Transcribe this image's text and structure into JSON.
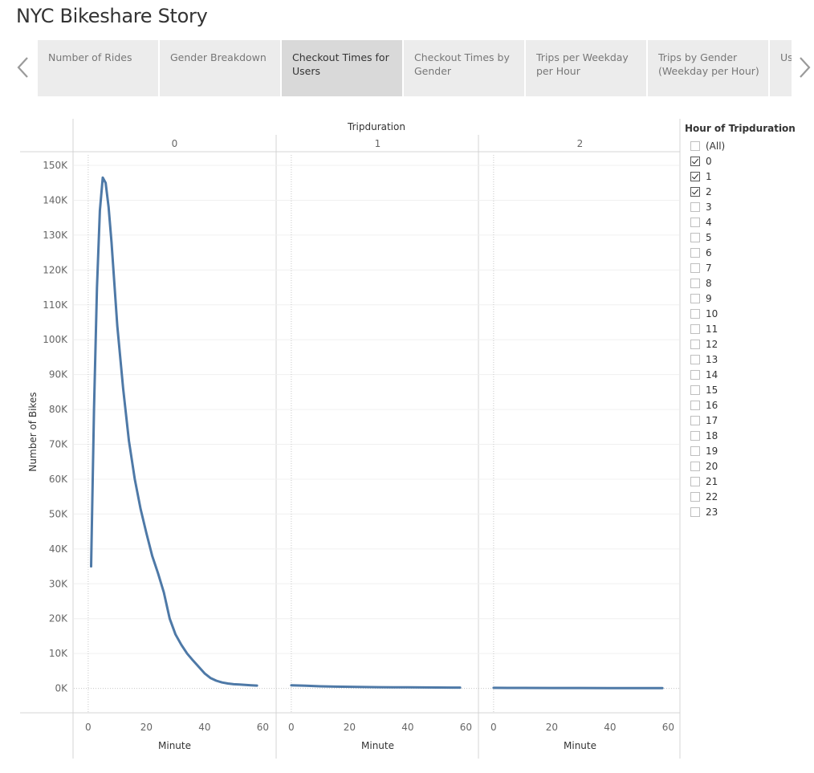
{
  "story": {
    "title": "NYC Bikeshare Story"
  },
  "tabs": [
    {
      "label": "Number of Rides",
      "active": false
    },
    {
      "label": "Gender Breakdown",
      "active": false
    },
    {
      "label": "Checkout Times for Users",
      "active": true
    },
    {
      "label": "Checkout Times by Gender",
      "active": false
    },
    {
      "label": "Trips per Weekday per Hour",
      "active": false
    },
    {
      "label": "Trips by Gender (Weekday per Hour)",
      "active": false
    },
    {
      "label": "Us by",
      "active": false
    }
  ],
  "icons": {
    "prev": "chevron-left-icon",
    "next": "chevron-right-icon",
    "checkbox": "checkbox-icon"
  },
  "colors": {
    "line": "#4e79a7",
    "active_tab": "#d9d9d9",
    "tab": "#ececec"
  },
  "filter": {
    "title": "Hour of Tripduration",
    "items": [
      {
        "label": "(All)",
        "checked": false
      },
      {
        "label": "0",
        "checked": true
      },
      {
        "label": "1",
        "checked": true
      },
      {
        "label": "2",
        "checked": true
      },
      {
        "label": "3",
        "checked": false
      },
      {
        "label": "4",
        "checked": false
      },
      {
        "label": "5",
        "checked": false
      },
      {
        "label": "6",
        "checked": false
      },
      {
        "label": "7",
        "checked": false
      },
      {
        "label": "8",
        "checked": false
      },
      {
        "label": "9",
        "checked": false
      },
      {
        "label": "10",
        "checked": false
      },
      {
        "label": "11",
        "checked": false
      },
      {
        "label": "12",
        "checked": false
      },
      {
        "label": "13",
        "checked": false
      },
      {
        "label": "14",
        "checked": false
      },
      {
        "label": "15",
        "checked": false
      },
      {
        "label": "16",
        "checked": false
      },
      {
        "label": "17",
        "checked": false
      },
      {
        "label": "18",
        "checked": false
      },
      {
        "label": "19",
        "checked": false
      },
      {
        "label": "20",
        "checked": false
      },
      {
        "label": "21",
        "checked": false
      },
      {
        "label": "22",
        "checked": false
      },
      {
        "label": "23",
        "checked": false
      }
    ]
  },
  "chart_data": {
    "type": "line",
    "column_header": "Tripduration",
    "xlabel": "Minute",
    "ylabel": "Number of Bikes",
    "xlim": [
      -3,
      61
    ],
    "ylim": [
      -7000,
      153000
    ],
    "xticks": [
      0,
      20,
      40,
      60
    ],
    "yticks": [
      0,
      10000,
      20000,
      30000,
      40000,
      50000,
      60000,
      70000,
      80000,
      90000,
      100000,
      110000,
      120000,
      130000,
      140000,
      150000
    ],
    "ytick_labels": [
      "0K",
      "10K",
      "20K",
      "30K",
      "40K",
      "50K",
      "60K",
      "70K",
      "80K",
      "90K",
      "100K",
      "110K",
      "120K",
      "130K",
      "140K",
      "150K"
    ],
    "grid": true,
    "panels": [
      {
        "label": "0",
        "x": [
          1,
          2,
          3,
          4,
          5,
          6,
          7,
          8,
          9,
          10,
          12,
          14,
          16,
          18,
          20,
          22,
          24,
          26,
          28,
          30,
          32,
          34,
          36,
          38,
          40,
          42,
          44,
          46,
          48,
          50,
          52,
          54,
          56,
          58
        ],
        "y": [
          35000,
          80000,
          115000,
          137000,
          146500,
          145000,
          138000,
          128000,
          116000,
          104000,
          86000,
          71000,
          60000,
          51500,
          44500,
          38000,
          33000,
          27500,
          20000,
          15500,
          12500,
          10000,
          8000,
          6200,
          4300,
          3000,
          2200,
          1700,
          1400,
          1200,
          1100,
          1000,
          900,
          800
        ]
      },
      {
        "label": "1",
        "x": [
          0,
          5,
          10,
          15,
          20,
          25,
          30,
          35,
          40,
          45,
          50,
          55,
          58
        ],
        "y": [
          900,
          750,
          600,
          500,
          450,
          400,
          350,
          330,
          300,
          280,
          260,
          240,
          220
        ]
      },
      {
        "label": "2",
        "x": [
          0,
          5,
          10,
          20,
          30,
          40,
          50,
          58
        ],
        "y": [
          150,
          140,
          130,
          120,
          110,
          100,
          90,
          80
        ]
      }
    ]
  }
}
